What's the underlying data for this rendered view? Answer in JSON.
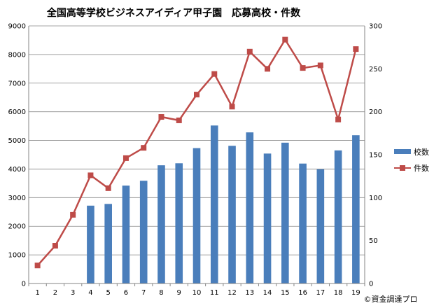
{
  "chart_data": {
    "type": "bar+line",
    "title": "全国高等学校ビジネスアイディア甲子園　応募高校・件数",
    "categories": [
      "1",
      "2",
      "3",
      "4",
      "5",
      "6",
      "7",
      "8",
      "9",
      "10",
      "11",
      "12",
      "13",
      "14",
      "15",
      "16",
      "17",
      "18",
      "19"
    ],
    "series": [
      {
        "name": "校数",
        "type": "bar",
        "axis": "left",
        "color": "#4a7ebb",
        "values": [
          null,
          null,
          null,
          2720,
          2780,
          3420,
          3590,
          4130,
          4200,
          4730,
          5520,
          4810,
          5280,
          4540,
          4920,
          4190,
          3990,
          4650,
          5180
        ]
      },
      {
        "name": "件数",
        "type": "line",
        "axis": "right",
        "color": "#be4b48",
        "values": [
          21,
          44,
          80,
          126,
          111,
          146,
          158,
          194,
          190,
          220,
          244,
          206,
          270,
          250,
          284,
          251,
          254,
          191,
          273
        ]
      }
    ],
    "y_left": {
      "min": 0,
      "max": 9000,
      "step": 1000,
      "ticks": [
        "0",
        "1000",
        "2000",
        "3000",
        "4000",
        "5000",
        "6000",
        "7000",
        "8000",
        "9000"
      ]
    },
    "y_right": {
      "min": 0,
      "max": 300,
      "step": 50,
      "ticks": [
        "0",
        "50",
        "100",
        "150",
        "200",
        "250",
        "300"
      ]
    },
    "grid": true,
    "legend_position": "right"
  },
  "credit": "©資金調達プロ"
}
